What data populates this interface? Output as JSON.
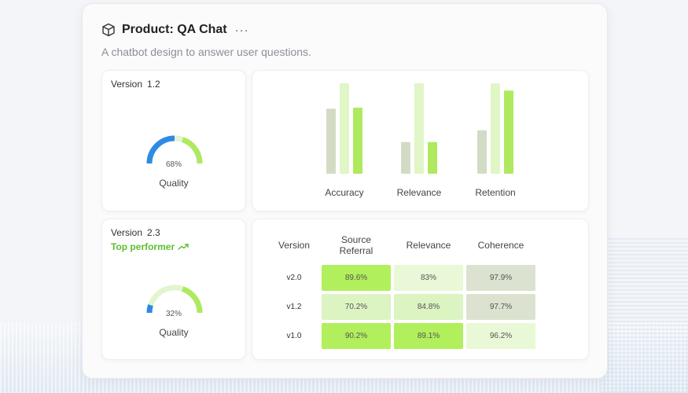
{
  "header": {
    "title": "Product: QA Chat",
    "more": "···",
    "subtitle": "A chatbot design to answer user questions."
  },
  "cards": [
    {
      "version_label": "Version",
      "version": "1.2",
      "percent": "68%",
      "percent_value": 68,
      "gauge_label": "Quality",
      "badge": ""
    },
    {
      "version_label": "Version",
      "version": "2.3",
      "percent": "32%",
      "percent_value": 32,
      "gauge_label": "Quality",
      "badge": "Top performer"
    }
  ],
  "chart_data": {
    "type": "bar",
    "categories": [
      "Accuracy",
      "Relevance",
      "Retention"
    ],
    "series": [
      {
        "name": "series-1",
        "values": [
          72,
          35,
          48
        ]
      },
      {
        "name": "series-2",
        "values": [
          100,
          100,
          100
        ]
      },
      {
        "name": "series-3",
        "values": [
          73,
          35,
          92
        ]
      }
    ],
    "ylim": [
      0,
      100
    ],
    "title": "",
    "xlabel": "",
    "ylabel": ""
  },
  "table": {
    "headers": [
      "Version",
      "Source Referral",
      "Relevance",
      "Coherence"
    ],
    "rows": [
      {
        "version": "v2.0",
        "cells": [
          "89.6%",
          "83%",
          "97.9%"
        ]
      },
      {
        "version": "v1.2",
        "cells": [
          "70.2%",
          "84.8%",
          "97.7%"
        ]
      },
      {
        "version": "v1.0",
        "cells": [
          "90.2%",
          "89.1%",
          "96.2%"
        ]
      }
    ]
  },
  "colors": {
    "bar_series": [
      "#d2dcc4",
      "#e0f6c6",
      "#aee95f"
    ],
    "gauge_blue": "#2f8ae6",
    "gauge_green": "#aee95f",
    "gauge_track": "#e3f5cf",
    "accent_green": "#5bbf2d"
  }
}
